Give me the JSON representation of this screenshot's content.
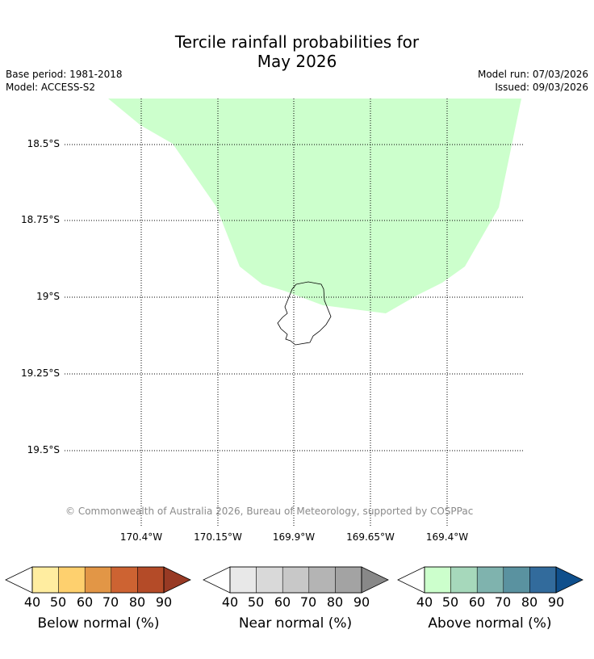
{
  "title_line1": "Tercile rainfall probabilities for",
  "title_line2": "May 2026",
  "meta": {
    "base_period": "Base period: 1981-2018",
    "model": "Model: ACCESS-S2",
    "model_run": "Model run: 07/03/2026",
    "issued": "Issued: 09/03/2026"
  },
  "map": {
    "lat_labels": [
      "18.5°S",
      "18.75°S",
      "19°S",
      "19.25°S",
      "19.5°S"
    ],
    "lon_labels": [
      "170.4°W",
      "170.15°W",
      "169.9°W",
      "169.65°W",
      "169.4°W"
    ],
    "probability_region": {
      "category": "Above normal",
      "level": "40-50",
      "color": "#ccffcc"
    },
    "copyright": "© Commonwealth of Australia 2026, Bureau of Meteorology, supported by COSPPac"
  },
  "legends": [
    {
      "title": "Below normal (%)",
      "ticks": [
        "40",
        "50",
        "60",
        "70",
        "80",
        "90"
      ],
      "colors": [
        "#ffeda0",
        "#fed06e",
        "#e29646",
        "#cd6332",
        "#b44b28",
        "#983a24"
      ]
    },
    {
      "title": "Near normal (%)",
      "ticks": [
        "40",
        "50",
        "60",
        "70",
        "80",
        "90"
      ],
      "colors": [
        "#e8e8e8",
        "#d9d9d9",
        "#c8c8c8",
        "#b4b4b4",
        "#a3a3a3",
        "#888888"
      ]
    },
    {
      "title": "Above normal (%)",
      "ticks": [
        "40",
        "50",
        "60",
        "70",
        "80",
        "90"
      ],
      "colors": [
        "#ccffcc",
        "#a6d8bb",
        "#7fb3ae",
        "#5a92a0",
        "#326b9c",
        "#0f4f8c"
      ]
    }
  ]
}
